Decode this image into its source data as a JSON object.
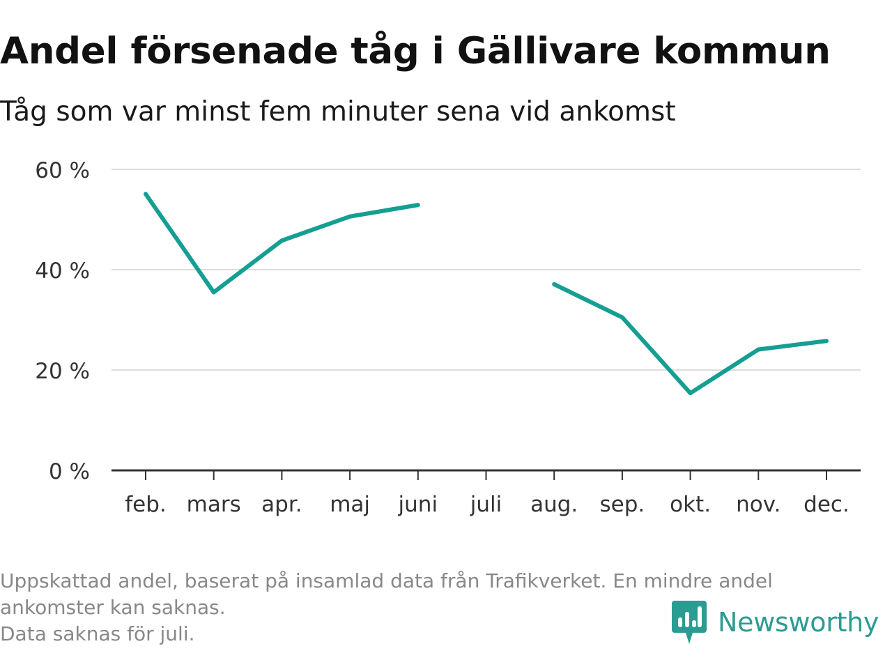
{
  "header": {
    "title": "Andel försenade tåg i Gällivare kommun",
    "subtitle": "Tåg som var minst fem minuter sena vid ankomst"
  },
  "chart_data": {
    "type": "line",
    "categories": [
      "feb.",
      "mars",
      "apr.",
      "maj",
      "juni",
      "juli",
      "aug.",
      "sep.",
      "okt.",
      "nov.",
      "dec."
    ],
    "series": [
      {
        "values": [
          55.1,
          35.5,
          45.8,
          50.6,
          52.9,
          null,
          37.1,
          30.5,
          15.4,
          24.1,
          25.8
        ]
      }
    ],
    "ylim": [
      0,
      60
    ],
    "yticks": [
      0,
      20,
      40,
      60
    ],
    "ytick_labels": [
      "0 %",
      "20 %",
      "40 %",
      "60 %"
    ],
    "grid": true,
    "legend": "none",
    "line_color": "#159e92"
  },
  "footer": {
    "notes": [
      "Uppskattad andel, baserat på insamlad data från Trafikverket. En mindre andel",
      "ankomster kan saknas.",
      "Data saknas för juli."
    ],
    "brand": "Newsworthy",
    "brand_color": "#2b9c92",
    "brand_icon": "newsworthy-logo-icon"
  }
}
